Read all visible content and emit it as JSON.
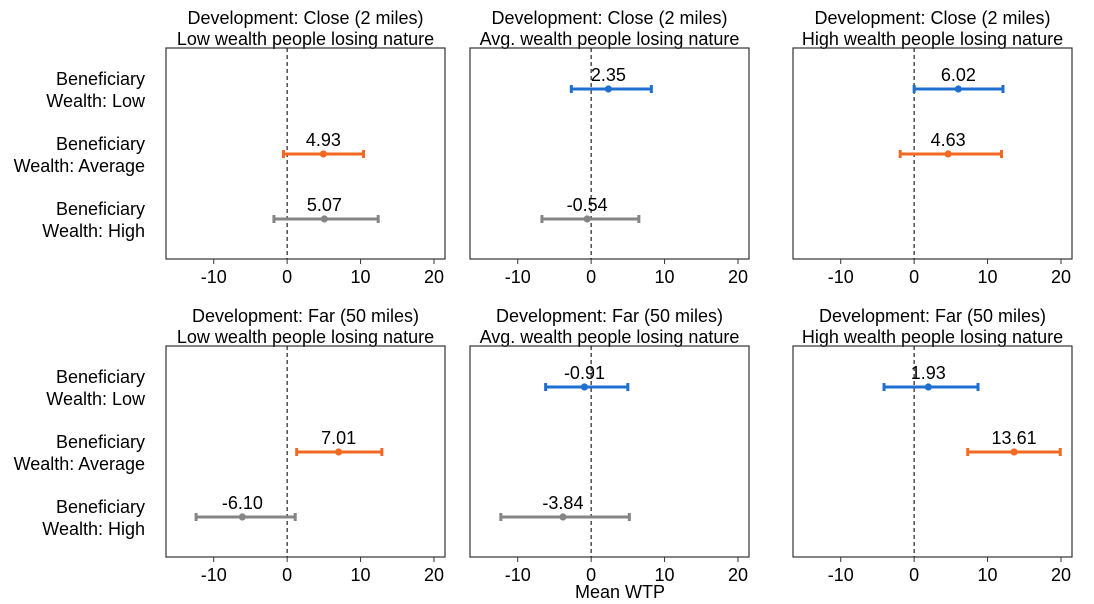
{
  "figure": {
    "xlabel": "Mean WTP",
    "row_labels": [
      [
        "Beneficiary",
        "Wealth: Low"
      ],
      [
        "Beneficiary",
        "Wealth: Average"
      ],
      [
        "Beneficiary",
        "Wealth: High"
      ]
    ]
  },
  "colors": {
    "low": "#1f6fd0",
    "average": "#f26a21",
    "high": "#858585"
  },
  "chart_data": [
    {
      "type": "errorbar",
      "title": [
        "Development:  Close (2 miles)",
        "Low wealth people losing nature"
      ],
      "xlim": [
        -16.5,
        21.5
      ],
      "xticks": [
        -10,
        0,
        10,
        20
      ],
      "points": [
        null,
        {
          "series": "Beneficiary Wealth: Average",
          "color": "average",
          "mean": 4.93,
          "low": -0.5,
          "high": 10.4,
          "label": "4.93"
        },
        {
          "series": "Beneficiary Wealth: High",
          "color": "high",
          "mean": 5.07,
          "low": -1.8,
          "high": 12.4,
          "label": "5.07"
        }
      ]
    },
    {
      "type": "errorbar",
      "title": [
        "Development:  Close (2 miles)",
        "Avg. wealth people losing nature"
      ],
      "xlim": [
        -16.5,
        21.5
      ],
      "xticks": [
        -10,
        0,
        10,
        20
      ],
      "points": [
        {
          "series": "Beneficiary Wealth: Low",
          "color": "low",
          "mean": 2.35,
          "low": -2.7,
          "high": 8.2,
          "label": "2.35"
        },
        null,
        {
          "series": "Beneficiary Wealth: High",
          "color": "high",
          "mean": -0.54,
          "low": -6.7,
          "high": 6.5,
          "label": "-0.54"
        }
      ]
    },
    {
      "type": "errorbar",
      "title": [
        "Development:  Close (2 miles)",
        "High wealth people losing nature"
      ],
      "xlim": [
        -16.5,
        21.5
      ],
      "xticks": [
        -10,
        0,
        10,
        20
      ],
      "points": [
        {
          "series": "Beneficiary Wealth: Low",
          "color": "low",
          "mean": 6.02,
          "low": 0.0,
          "high": 12.1,
          "label": "6.02"
        },
        {
          "series": "Beneficiary Wealth: Average",
          "color": "average",
          "mean": 4.63,
          "low": -1.9,
          "high": 11.9,
          "label": "4.63"
        },
        null
      ]
    },
    {
      "type": "errorbar",
      "title": [
        "Development:  Far (50 miles)",
        "Low wealth people losing nature"
      ],
      "xlim": [
        -16.5,
        21.5
      ],
      "xticks": [
        -10,
        0,
        10,
        20
      ],
      "points": [
        null,
        {
          "series": "Beneficiary Wealth: Average",
          "color": "average",
          "mean": 7.01,
          "low": 1.3,
          "high": 12.9,
          "label": "7.01"
        },
        {
          "series": "Beneficiary Wealth: High",
          "color": "high",
          "mean": -6.1,
          "low": -12.4,
          "high": 1.1,
          "label": "-6.10"
        }
      ]
    },
    {
      "type": "errorbar",
      "title": [
        "Development:  Far (50 miles)",
        "Avg. wealth people losing nature"
      ],
      "xlim": [
        -16.5,
        21.5
      ],
      "xticks": [
        -10,
        0,
        10,
        20
      ],
      "points": [
        {
          "series": "Beneficiary Wealth: Low",
          "color": "low",
          "mean": -0.91,
          "low": -6.2,
          "high": 5.0,
          "label": "-0.91"
        },
        null,
        {
          "series": "Beneficiary Wealth: High",
          "color": "high",
          "mean": -3.84,
          "low": -12.3,
          "high": 5.2,
          "label": "-3.84"
        }
      ]
    },
    {
      "type": "errorbar",
      "title": [
        "Development:  Far (50 miles)",
        "High wealth people losing nature"
      ],
      "xlim": [
        -16.5,
        21.5
      ],
      "xticks": [
        -10,
        0,
        10,
        20
      ],
      "points": [
        {
          "series": "Beneficiary Wealth: Low",
          "color": "low",
          "mean": 1.93,
          "low": -4.1,
          "high": 8.7,
          "label": "1.93"
        },
        {
          "series": "Beneficiary Wealth: Average",
          "color": "average",
          "mean": 13.61,
          "low": 7.3,
          "high": 19.9,
          "label": "13.61"
        },
        null
      ]
    }
  ]
}
